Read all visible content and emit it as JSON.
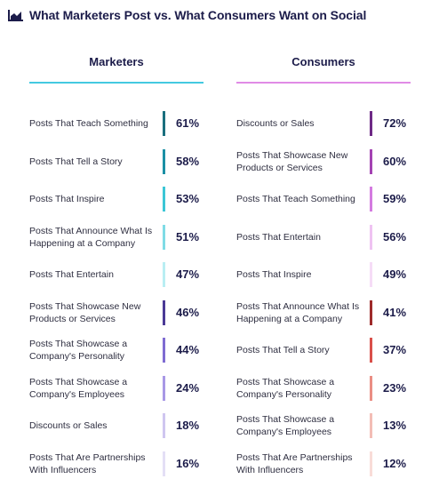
{
  "title": "What Marketers Post vs. What Consumers Want on Social",
  "chart_data": {
    "type": "table",
    "title": "What Marketers Post vs. What Consumers Want on Social",
    "columns": [
      {
        "name": "Marketers",
        "rule_color": "#44c9e0",
        "rows": [
          {
            "label": "Posts That Teach Something",
            "value": "61%",
            "color": "#1a6f7e"
          },
          {
            "label": "Posts That Tell a Story",
            "value": "58%",
            "color": "#1b90a5"
          },
          {
            "label": "Posts That Inspire",
            "value": "53%",
            "color": "#3cc6d6"
          },
          {
            "label": "Posts That Announce What Is Happening at a Company",
            "value": "51%",
            "color": "#7fdbe6"
          },
          {
            "label": "Posts That Entertain",
            "value": "47%",
            "color": "#b9eef3"
          },
          {
            "label": "Posts That Showcase New Products or Services",
            "value": "46%",
            "color": "#4b3a96"
          },
          {
            "label": "Posts That Showcase a Company's Personality",
            "value": "44%",
            "color": "#7f6cd2"
          },
          {
            "label": "Posts That Showcase a Company's Employees",
            "value": "24%",
            "color": "#a898e6"
          },
          {
            "label": "Discounts or Sales",
            "value": "18%",
            "color": "#cfc6f0"
          },
          {
            "label": "Posts That Are Partnerships With Influencers",
            "value": "16%",
            "color": "#e4dff6"
          }
        ]
      },
      {
        "name": "Consumers",
        "rule_color": "#e08be6",
        "rows": [
          {
            "label": "Discounts or Sales",
            "value": "72%",
            "color": "#6e2a86"
          },
          {
            "label": "Posts That Showcase New Products or Services",
            "value": "60%",
            "color": "#a443b3"
          },
          {
            "label": "Posts That Teach Something",
            "value": "59%",
            "color": "#d47be0"
          },
          {
            "label": "Posts That Entertain",
            "value": "56%",
            "color": "#efc3f2"
          },
          {
            "label": "Posts That Inspire",
            "value": "49%",
            "color": "#f6dcf7"
          },
          {
            "label": "Posts That Announce What Is Happening at a Company",
            "value": "41%",
            "color": "#9e2b2b"
          },
          {
            "label": "Posts That Tell a Story",
            "value": "37%",
            "color": "#d9504a"
          },
          {
            "label": "Posts That Showcase a Company's Personality",
            "value": "23%",
            "color": "#ea8e84"
          },
          {
            "label": "Posts That Showcase a Company's Employees",
            "value": "13%",
            "color": "#f3bdb6"
          },
          {
            "label": "Posts That Are Partnerships With Influencers",
            "value": "12%",
            "color": "#f8dcd8"
          }
        ]
      }
    ]
  }
}
